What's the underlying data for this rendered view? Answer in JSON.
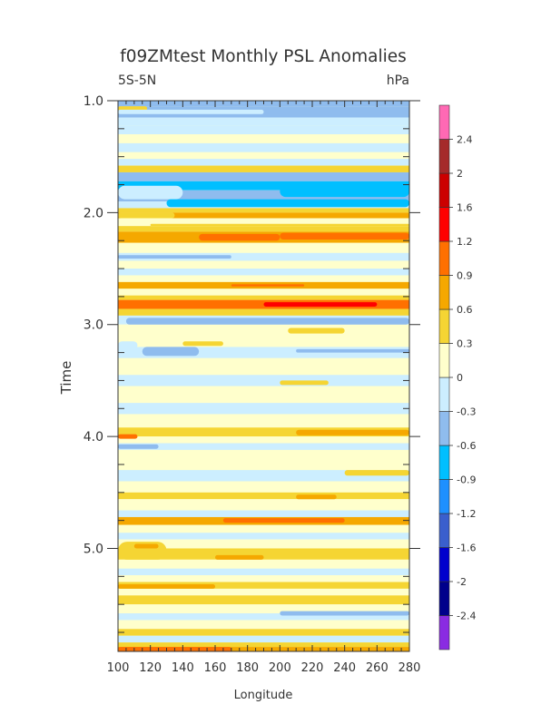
{
  "chart_data": {
    "type": "heatmap",
    "title": "f09ZMtest Monthly PSL Anomalies",
    "subtitle_left": "5S-5N",
    "subtitle_right": "hPa",
    "xlabel": "Longitude",
    "ylabel": "Time",
    "xlim": [
      100,
      280
    ],
    "ylim": [
      1.0,
      5.92
    ],
    "y_reversed": true,
    "x_ticks": [
      "100",
      "120",
      "140",
      "160",
      "180",
      "200",
      "220",
      "240",
      "260",
      "280"
    ],
    "y_ticks": [
      "1.0",
      "2.0",
      "3.0",
      "4.0",
      "5.0"
    ],
    "colorbar": {
      "levels": [
        "-2.4",
        "-2",
        "-1.6",
        "-1.2",
        "-0.9",
        "-0.6",
        "-0.3",
        "0",
        "0.3",
        "0.6",
        "0.9",
        "1.2",
        "1.6",
        "2",
        "2.4"
      ],
      "colors": [
        "#8a2be2",
        "#00008b",
        "#0000cd",
        "#3a5fcd",
        "#1e90ff",
        "#00bfff",
        "#8fbcee",
        "#cceeff",
        "#ffffcc",
        "#f5d533",
        "#f5a800",
        "#ff7000",
        "#ff0000",
        "#cc0000",
        "#a52a2a",
        "#ff69b4"
      ]
    },
    "bands": [
      {
        "t0": 1.0,
        "t1": 1.05,
        "v": -0.6
      },
      {
        "t0": 1.05,
        "t1": 1.15,
        "v": -0.6
      },
      {
        "t0": 1.15,
        "t1": 1.22,
        "v": -0.3
      },
      {
        "t0": 1.22,
        "t1": 1.3,
        "v": -0.3
      },
      {
        "t0": 1.3,
        "t1": 1.38,
        "v": 0.1
      },
      {
        "t0": 1.38,
        "t1": 1.46,
        "v": -0.2
      },
      {
        "t0": 1.46,
        "t1": 1.52,
        "v": 0.1
      },
      {
        "t0": 1.52,
        "t1": 1.58,
        "v": -0.2
      },
      {
        "t0": 1.58,
        "t1": 1.64,
        "v": 0.35
      },
      {
        "t0": 1.64,
        "t1": 1.72,
        "v": -0.4
      },
      {
        "t0": 1.72,
        "t1": 1.8,
        "v": -0.7
      },
      {
        "t0": 1.8,
        "t1": 1.9,
        "v": -0.6
      },
      {
        "t0": 1.9,
        "t1": 1.96,
        "v": -0.3
      },
      {
        "t0": 1.96,
        "t1": 2.0,
        "v": 0.4
      },
      {
        "t0": 2.0,
        "t1": 2.05,
        "v": 0.7
      },
      {
        "t0": 2.05,
        "t1": 2.12,
        "v": 0.1
      },
      {
        "t0": 2.12,
        "t1": 2.17,
        "v": 0.4
      },
      {
        "t0": 2.17,
        "t1": 2.27,
        "v": 0.7
      },
      {
        "t0": 2.27,
        "t1": 2.36,
        "v": 0.1
      },
      {
        "t0": 2.36,
        "t1": 2.43,
        "v": -0.2
      },
      {
        "t0": 2.43,
        "t1": 2.5,
        "v": 0.1
      },
      {
        "t0": 2.5,
        "t1": 2.56,
        "v": -0.2
      },
      {
        "t0": 2.56,
        "t1": 2.62,
        "v": 0.1
      },
      {
        "t0": 2.62,
        "t1": 2.68,
        "v": 0.7
      },
      {
        "t0": 2.68,
        "t1": 2.74,
        "v": 0.1
      },
      {
        "t0": 2.74,
        "t1": 2.78,
        "v": 0.4
      },
      {
        "t0": 2.78,
        "t1": 2.86,
        "v": 1.0
      },
      {
        "t0": 2.86,
        "t1": 2.92,
        "v": 0.3
      },
      {
        "t0": 2.92,
        "t1": 3.0,
        "v": -0.2
      },
      {
        "t0": 3.0,
        "t1": 3.1,
        "v": 0.1
      },
      {
        "t0": 3.1,
        "t1": 3.2,
        "v": 0.1
      },
      {
        "t0": 3.2,
        "t1": 3.3,
        "v": -0.2
      },
      {
        "t0": 3.3,
        "t1": 3.45,
        "v": 0.1
      },
      {
        "t0": 3.45,
        "t1": 3.55,
        "v": -0.2
      },
      {
        "t0": 3.55,
        "t1": 3.7,
        "v": 0.1
      },
      {
        "t0": 3.7,
        "t1": 3.8,
        "v": -0.2
      },
      {
        "t0": 3.8,
        "t1": 3.92,
        "v": 0.1
      },
      {
        "t0": 3.92,
        "t1": 4.0,
        "v": 0.4
      },
      {
        "t0": 4.0,
        "t1": 4.06,
        "v": 0.1
      },
      {
        "t0": 4.06,
        "t1": 4.12,
        "v": -0.2
      },
      {
        "t0": 4.12,
        "t1": 4.3,
        "v": 0.1
      },
      {
        "t0": 4.3,
        "t1": 4.4,
        "v": -0.2
      },
      {
        "t0": 4.4,
        "t1": 4.5,
        "v": 0.1
      },
      {
        "t0": 4.5,
        "t1": 4.56,
        "v": 0.4
      },
      {
        "t0": 4.56,
        "t1": 4.66,
        "v": 0.1
      },
      {
        "t0": 4.66,
        "t1": 4.72,
        "v": -0.2
      },
      {
        "t0": 4.72,
        "t1": 4.79,
        "v": 0.7
      },
      {
        "t0": 4.79,
        "t1": 4.86,
        "v": 0.1
      },
      {
        "t0": 4.86,
        "t1": 4.92,
        "v": -0.2
      },
      {
        "t0": 4.92,
        "t1": 5.0,
        "v": 0.1
      },
      {
        "t0": 5.0,
        "t1": 5.1,
        "v": 0.4
      },
      {
        "t0": 5.1,
        "t1": 5.18,
        "v": 0.1
      },
      {
        "t0": 5.18,
        "t1": 5.24,
        "v": -0.2
      },
      {
        "t0": 5.24,
        "t1": 5.3,
        "v": 0.1
      },
      {
        "t0": 5.3,
        "t1": 5.36,
        "v": 0.5
      },
      {
        "t0": 5.36,
        "t1": 5.42,
        "v": 0.1
      },
      {
        "t0": 5.42,
        "t1": 5.5,
        "v": 0.4
      },
      {
        "t0": 5.5,
        "t1": 5.58,
        "v": 0.1
      },
      {
        "t0": 5.58,
        "t1": 5.64,
        "v": -0.2
      },
      {
        "t0": 5.64,
        "t1": 5.72,
        "v": 0.1
      },
      {
        "t0": 5.72,
        "t1": 5.78,
        "v": 0.4
      },
      {
        "t0": 5.78,
        "t1": 5.84,
        "v": -0.2
      },
      {
        "t0": 5.84,
        "t1": 5.88,
        "v": 0.4
      },
      {
        "t0": 5.88,
        "t1": 5.92,
        "v": 0.8
      }
    ],
    "patches": [
      {
        "x0": 100,
        "x1": 118,
        "t0": 1.05,
        "t1": 1.09,
        "v": 0.4
      },
      {
        "x0": 100,
        "x1": 190,
        "t0": 1.08,
        "t1": 1.12,
        "v": -0.3
      },
      {
        "x0": 100,
        "x1": 140,
        "t0": 1.76,
        "t1": 1.88,
        "v": -0.3
      },
      {
        "x0": 200,
        "x1": 280,
        "t0": 1.76,
        "t1": 1.86,
        "v": -0.7
      },
      {
        "x0": 130,
        "x1": 280,
        "t0": 1.88,
        "t1": 1.95,
        "v": -0.7
      },
      {
        "x0": 100,
        "x1": 135,
        "t0": 2.0,
        "t1": 2.05,
        "v": 0.4
      },
      {
        "x0": 120,
        "x1": 280,
        "t0": 2.1,
        "t1": 2.12,
        "v": 0.35
      },
      {
        "x0": 200,
        "x1": 280,
        "t0": 2.18,
        "t1": 2.24,
        "v": 1.0
      },
      {
        "x0": 150,
        "x1": 200,
        "t0": 2.19,
        "t1": 2.25,
        "v": 1.0
      },
      {
        "x0": 100,
        "x1": 170,
        "t0": 2.38,
        "t1": 2.41,
        "v": -0.4
      },
      {
        "x0": 170,
        "x1": 215,
        "t0": 2.64,
        "t1": 2.66,
        "v": 1.0
      },
      {
        "x0": 190,
        "x1": 260,
        "t0": 2.8,
        "t1": 2.84,
        "v": 1.3
      },
      {
        "x0": 105,
        "x1": 280,
        "t0": 2.94,
        "t1": 3.0,
        "v": -0.4
      },
      {
        "x0": 205,
        "x1": 240,
        "t0": 3.03,
        "t1": 3.08,
        "v": 0.4
      },
      {
        "x0": 100,
        "x1": 112,
        "t0": 3.15,
        "t1": 3.22,
        "v": -0.2
      },
      {
        "x0": 115,
        "x1": 150,
        "t0": 3.2,
        "t1": 3.28,
        "v": -0.4
      },
      {
        "x0": 140,
        "x1": 165,
        "t0": 3.15,
        "t1": 3.19,
        "v": 0.4
      },
      {
        "x0": 210,
        "x1": 280,
        "t0": 3.22,
        "t1": 3.25,
        "v": -0.4
      },
      {
        "x0": 200,
        "x1": 230,
        "t0": 3.5,
        "t1": 3.54,
        "v": 0.4
      },
      {
        "x0": 100,
        "x1": 112,
        "t0": 3.98,
        "t1": 4.02,
        "v": 1.0
      },
      {
        "x0": 100,
        "x1": 125,
        "t0": 4.07,
        "t1": 4.11,
        "v": -0.4
      },
      {
        "x0": 210,
        "x1": 280,
        "t0": 3.94,
        "t1": 3.99,
        "v": 0.7
      },
      {
        "x0": 240,
        "x1": 280,
        "t0": 4.3,
        "t1": 4.35,
        "v": 0.4
      },
      {
        "x0": 210,
        "x1": 235,
        "t0": 4.52,
        "t1": 4.56,
        "v": 0.7
      },
      {
        "x0": 165,
        "x1": 240,
        "t0": 4.73,
        "t1": 4.77,
        "v": 1.0
      },
      {
        "x0": 100,
        "x1": 130,
        "t0": 4.94,
        "t1": 5.1,
        "v": 0.4
      },
      {
        "x0": 110,
        "x1": 125,
        "t0": 4.96,
        "t1": 5.0,
        "v": 0.8
      },
      {
        "x0": 160,
        "x1": 190,
        "t0": 5.06,
        "t1": 5.1,
        "v": 0.7
      },
      {
        "x0": 100,
        "x1": 160,
        "t0": 5.32,
        "t1": 5.36,
        "v": 0.8
      },
      {
        "x0": 200,
        "x1": 280,
        "t0": 5.56,
        "t1": 5.6,
        "v": -0.4
      },
      {
        "x0": 100,
        "x1": 170,
        "t0": 5.88,
        "t1": 5.92,
        "v": 1.1
      }
    ]
  }
}
